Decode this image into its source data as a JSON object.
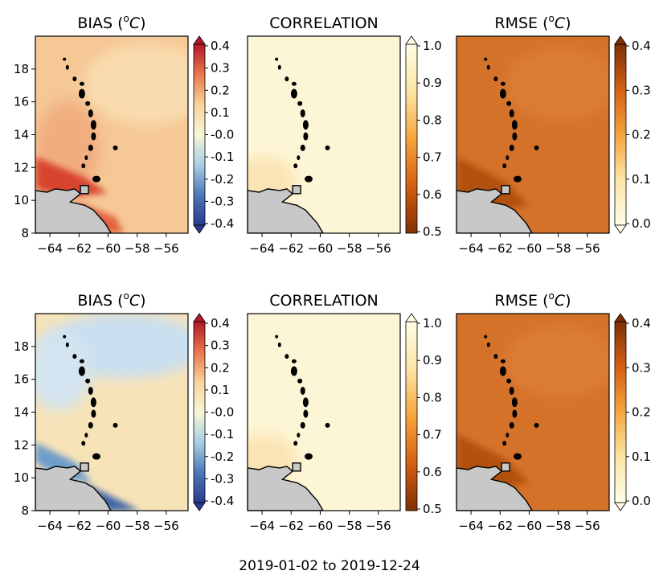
{
  "caption": "2019-01-02 to 2019-12-24",
  "colors": {
    "land": "#c8c8c8",
    "coast": "#000000",
    "bias_cmap": [
      "#2b3a8f",
      "#4c78b8",
      "#a9cfe3",
      "#f7f6d6",
      "#f8d49c",
      "#e9774b",
      "#b3182b"
    ],
    "corr_cmap": [
      "#7f3004",
      "#d45f13",
      "#f6a53c",
      "#fde6a6",
      "#fffde6"
    ],
    "rmse_cmap": [
      "#fffde6",
      "#fde6a6",
      "#f6a53c",
      "#d45f13",
      "#7f3004"
    ],
    "bias_field_row1": "#f6c896",
    "bias_field_row1_edge": "#d8452f",
    "bias_field_row2": "#f7e3b8",
    "bias_field_row2_blue": "#c9dff0",
    "corr_field": "#fdf6d6",
    "rmse_field": "#d5722a",
    "rmse_field_dark": "#b2510f"
  },
  "chart_data": [
    {
      "type": "heatmap",
      "row": 1,
      "title": "BIAS (⁰C)",
      "title_base": "BIAS (",
      "title_sup": "o",
      "title_unit": "C",
      "title_close": ")",
      "colorbar": "bias",
      "xticks": [
        "−64",
        "−62",
        "−60",
        "−58",
        "−56"
      ],
      "yticks": [
        "18",
        "16",
        "14",
        "12",
        "10",
        "8"
      ],
      "xlim": [
        -65,
        -54.5
      ],
      "ylim": [
        8,
        20
      ]
    },
    {
      "type": "heatmap",
      "row": 1,
      "title": "CORRELATION",
      "colorbar": "corr",
      "xticks": [
        "−64",
        "−62",
        "−60",
        "−58",
        "−56"
      ],
      "xlim": [
        -65,
        -54.5
      ],
      "ylim": [
        8,
        20
      ]
    },
    {
      "type": "heatmap",
      "row": 1,
      "title": "RMSE (⁰C)",
      "title_base": "RMSE (",
      "title_sup": "o",
      "title_unit": "C",
      "title_close": ")",
      "colorbar": "rmse",
      "xticks": [
        "−64",
        "−62",
        "−60",
        "−58",
        "−56"
      ],
      "xlim": [
        -65,
        -54.5
      ],
      "ylim": [
        8,
        20
      ]
    },
    {
      "type": "heatmap",
      "row": 2,
      "title": "BIAS (⁰C)",
      "title_base": "BIAS (",
      "title_sup": "o",
      "title_unit": "C",
      "title_close": ")",
      "colorbar": "bias",
      "xticks": [
        "−64",
        "−62",
        "−60",
        "−58",
        "−56"
      ],
      "yticks": [
        "18",
        "16",
        "14",
        "12",
        "10",
        "8"
      ],
      "xlim": [
        -65,
        -54.5
      ],
      "ylim": [
        8,
        20
      ]
    },
    {
      "type": "heatmap",
      "row": 2,
      "title": "CORRELATION",
      "colorbar": "corr",
      "xticks": [
        "−64",
        "−62",
        "−60",
        "−58",
        "−56"
      ],
      "xlim": [
        -65,
        -54.5
      ],
      "ylim": [
        8,
        20
      ]
    },
    {
      "type": "heatmap",
      "row": 2,
      "title": "RMSE (⁰C)",
      "title_base": "RMSE (",
      "title_sup": "o",
      "title_unit": "C",
      "title_close": ")",
      "colorbar": "rmse",
      "xticks": [
        "−64",
        "−62",
        "−60",
        "−58",
        "−56"
      ],
      "xlim": [
        -65,
        -54.5
      ],
      "ylim": [
        8,
        20
      ]
    }
  ],
  "colorbars": {
    "bias": {
      "ticks": [
        "0.4",
        "0.3",
        "0.2",
        "0.1",
        "-0.0",
        "-0.1",
        "-0.2",
        "-0.3",
        "-0.4"
      ],
      "range": [
        -0.4,
        0.4
      ],
      "extend": "both"
    },
    "corr": {
      "ticks": [
        "1.0",
        "0.9",
        "0.8",
        "0.7",
        "0.6",
        "0.5"
      ],
      "range": [
        0.5,
        1.0
      ],
      "extend": "max"
    },
    "rmse": {
      "ticks": [
        "0.4",
        "0.3",
        "0.2",
        "0.1",
        "0.0"
      ],
      "range": [
        0.0,
        0.4
      ],
      "extend": "both"
    }
  }
}
